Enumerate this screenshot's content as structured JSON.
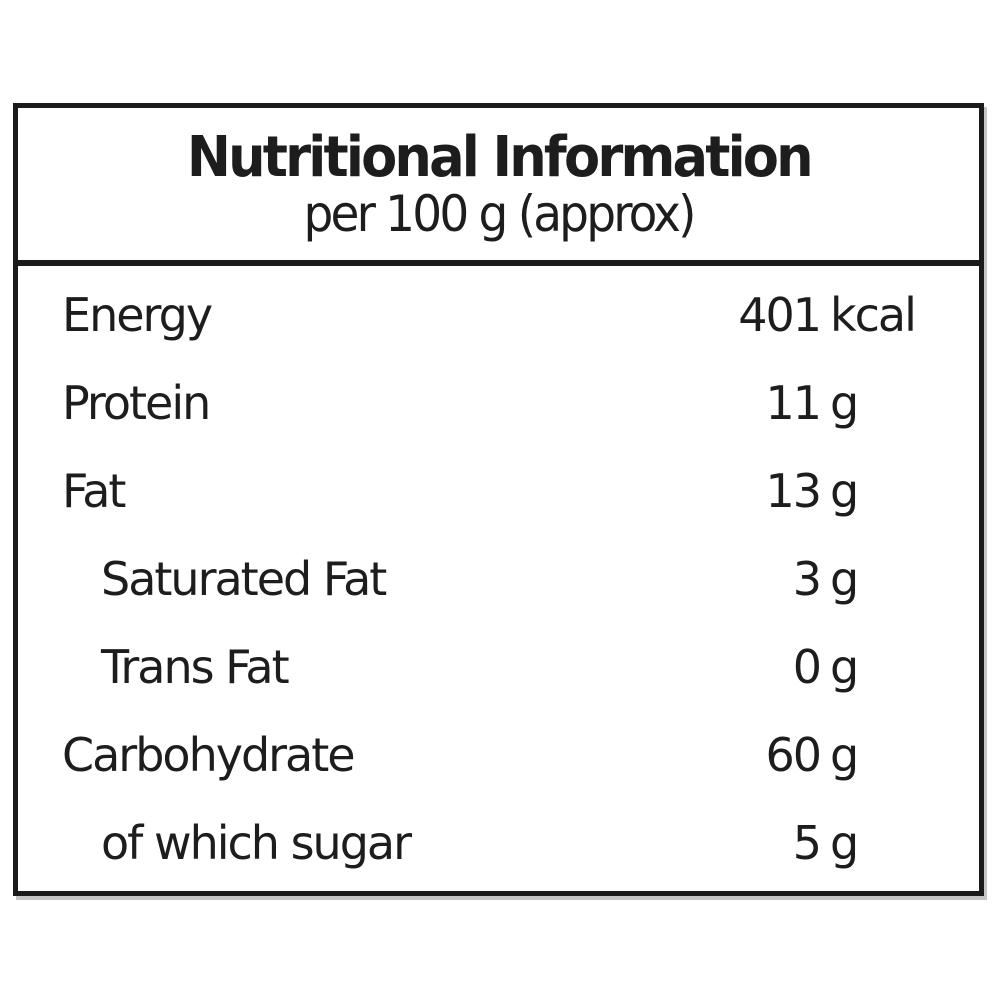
{
  "label": {
    "title": "Nutritional Information",
    "subtitle": "per 100 g (approx)",
    "rows": [
      {
        "name": "Energy",
        "amount": "401",
        "unit": "kcal",
        "indent": false
      },
      {
        "name": "Protein",
        "amount": "11",
        "unit": "g",
        "indent": false
      },
      {
        "name": "Fat",
        "amount": "13",
        "unit": "g",
        "indent": false
      },
      {
        "name": "Saturated Fat",
        "amount": "3",
        "unit": "g",
        "indent": true
      },
      {
        "name": "Trans Fat",
        "amount": "0",
        "unit": "g",
        "indent": true
      },
      {
        "name": "Carbohydrate",
        "amount": "60",
        "unit": "g",
        "indent": false
      },
      {
        "name": "of which sugar",
        "amount": "5",
        "unit": "g",
        "indent": true
      }
    ],
    "colors": {
      "border": "#1b1b1b",
      "text": "#1d1d1d",
      "background": "#ffffff"
    }
  }
}
